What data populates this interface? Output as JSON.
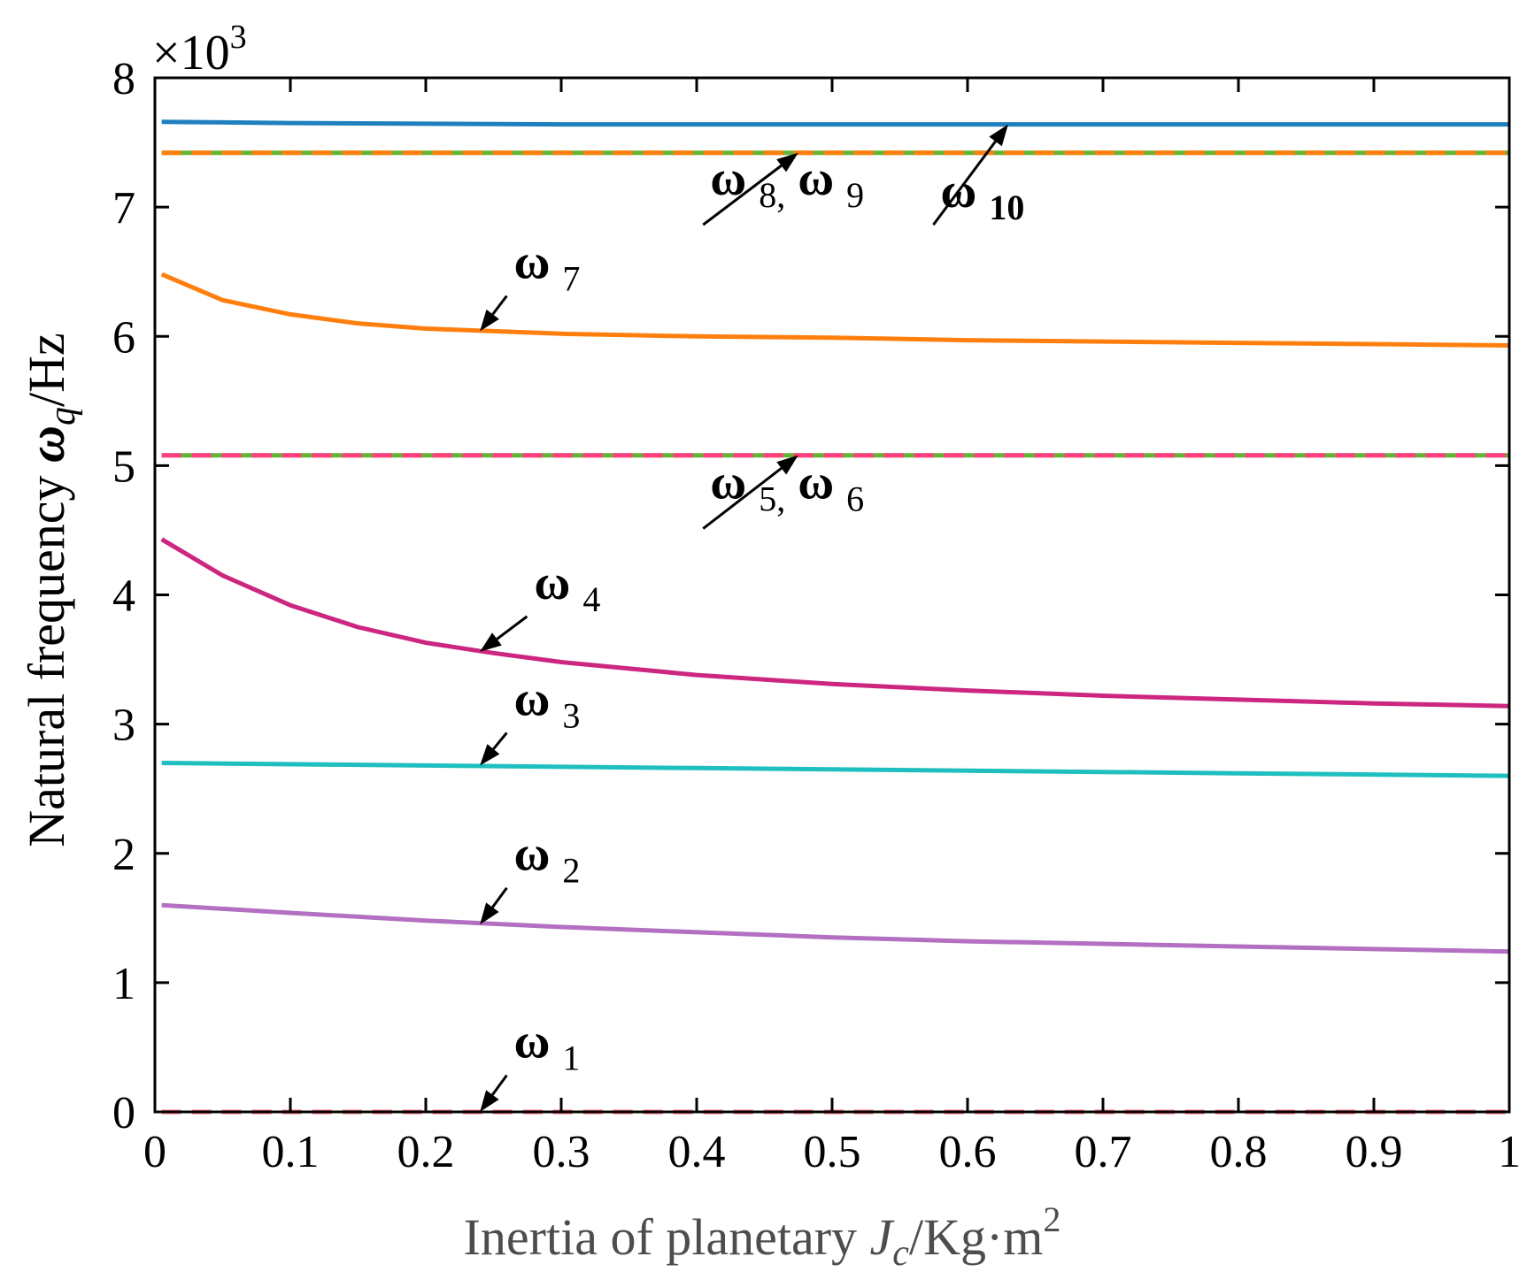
{
  "chart_data": {
    "type": "line",
    "title": "",
    "xlabel": {
      "prefix": "Inertia of planetary ",
      "var": "J",
      "sub": "c",
      "unit": "/Kg·m",
      "sup": "2"
    },
    "ylabel": {
      "prefix": "Natural frequency ",
      "var": "ω",
      "sub": "q",
      "unit": "/Hz"
    },
    "y_multiplier": {
      "times": "×10",
      "exp": "3"
    },
    "xlim": [
      0,
      1
    ],
    "ylim": [
      0,
      8
    ],
    "x_ticks": [
      "0",
      "0.1",
      "0.2",
      "0.3",
      "0.4",
      "0.5",
      "0.6",
      "0.7",
      "0.8",
      "0.9",
      "1"
    ],
    "y_ticks": [
      "0",
      "1",
      "2",
      "3",
      "4",
      "5",
      "6",
      "7",
      "8"
    ],
    "grid": false,
    "colors": {
      "axis": "#000000",
      "xlabel": "#4d4d4d",
      "arrow": "#000000"
    },
    "series": [
      {
        "name": "ω1",
        "color": "#ff6a7a",
        "dashed": true,
        "x": [
          0.005,
          1.0
        ],
        "values": [
          0.0,
          0.0
        ]
      },
      {
        "name": "ω2",
        "color": "#b36fc2",
        "dashed": false,
        "x": [
          0.005,
          0.1,
          0.2,
          0.3,
          0.4,
          0.5,
          0.6,
          0.7,
          0.8,
          0.9,
          1.0
        ],
        "values": [
          1.6,
          1.54,
          1.48,
          1.43,
          1.39,
          1.35,
          1.32,
          1.3,
          1.28,
          1.26,
          1.24
        ]
      },
      {
        "name": "ω3",
        "color": "#1fbfbf",
        "dashed": false,
        "x": [
          0.005,
          0.2,
          0.4,
          0.6,
          0.8,
          1.0
        ],
        "values": [
          2.7,
          2.68,
          2.66,
          2.64,
          2.62,
          2.6
        ]
      },
      {
        "name": "ω4",
        "color": "#cc2680",
        "dashed": false,
        "x": [
          0.005,
          0.05,
          0.1,
          0.15,
          0.2,
          0.25,
          0.3,
          0.4,
          0.5,
          0.6,
          0.7,
          0.8,
          0.9,
          1.0
        ],
        "values": [
          4.43,
          4.15,
          3.92,
          3.75,
          3.63,
          3.55,
          3.48,
          3.38,
          3.31,
          3.26,
          3.22,
          3.19,
          3.16,
          3.14
        ]
      },
      {
        "name": "ω5",
        "color": "#66b233",
        "dashed": false,
        "x": [
          0.005,
          1.0
        ],
        "values": [
          5.08,
          5.08
        ]
      },
      {
        "name": "ω6",
        "color": "#ff3d7f",
        "dashed": true,
        "x": [
          0.005,
          1.0
        ],
        "values": [
          5.08,
          5.08
        ]
      },
      {
        "name": "ω7",
        "color": "#ff7f0e",
        "dashed": false,
        "x": [
          0.005,
          0.05,
          0.1,
          0.15,
          0.2,
          0.25,
          0.3,
          0.4,
          0.5,
          0.6,
          0.7,
          0.8,
          0.9,
          1.0
        ],
        "values": [
          6.48,
          6.28,
          6.17,
          6.1,
          6.06,
          6.04,
          6.02,
          6.0,
          5.99,
          5.97,
          5.96,
          5.95,
          5.94,
          5.93
        ]
      },
      {
        "name": "ω8",
        "color": "#66b233",
        "dashed": false,
        "x": [
          0.005,
          1.0
        ],
        "values": [
          7.42,
          7.42
        ]
      },
      {
        "name": "ω9",
        "color": "#ff7f0e",
        "dashed": true,
        "x": [
          0.005,
          1.0
        ],
        "values": [
          7.42,
          7.42
        ]
      },
      {
        "name": "ω10",
        "color": "#1f7fbf",
        "dashed": false,
        "x": [
          0.005,
          0.1,
          0.3,
          0.6,
          1.0
        ],
        "values": [
          7.66,
          7.65,
          7.64,
          7.64,
          7.64
        ]
      }
    ],
    "annotations": [
      {
        "sym": "ω",
        "idx": "1",
        "x": 0.24,
        "y": 0.0,
        "tx": 0.265,
        "ty": 0.42,
        "bold_idx": false
      },
      {
        "sym": "ω",
        "idx": "2",
        "x": 0.24,
        "y": 1.45,
        "tx": 0.265,
        "ty": 1.87,
        "bold_idx": false
      },
      {
        "sym": "ω",
        "idx": "3",
        "x": 0.24,
        "y": 2.68,
        "tx": 0.265,
        "ty": 3.07,
        "bold_idx": false
      },
      {
        "sym": "ω",
        "idx": "4",
        "x": 0.24,
        "y": 3.56,
        "tx": 0.28,
        "ty": 3.97,
        "bold_idx": false
      },
      {
        "sym": "ω",
        "idx": "7",
        "x": 0.24,
        "y": 6.04,
        "tx": 0.265,
        "ty": 6.45,
        "bold_idx": false
      },
      {
        "label": "ω 5, ω 6",
        "x": 0.475,
        "y": 5.08,
        "tx": 0.41,
        "ty": 4.65
      },
      {
        "label": "ω 8, ω 9",
        "x": 0.475,
        "y": 7.42,
        "tx": 0.41,
        "ty": 7.0
      },
      {
        "sym": "ω",
        "idx": "10",
        "x": 0.63,
        "y": 7.64,
        "tx": 0.58,
        "ty": 7.0,
        "bold_idx": true
      }
    ]
  }
}
